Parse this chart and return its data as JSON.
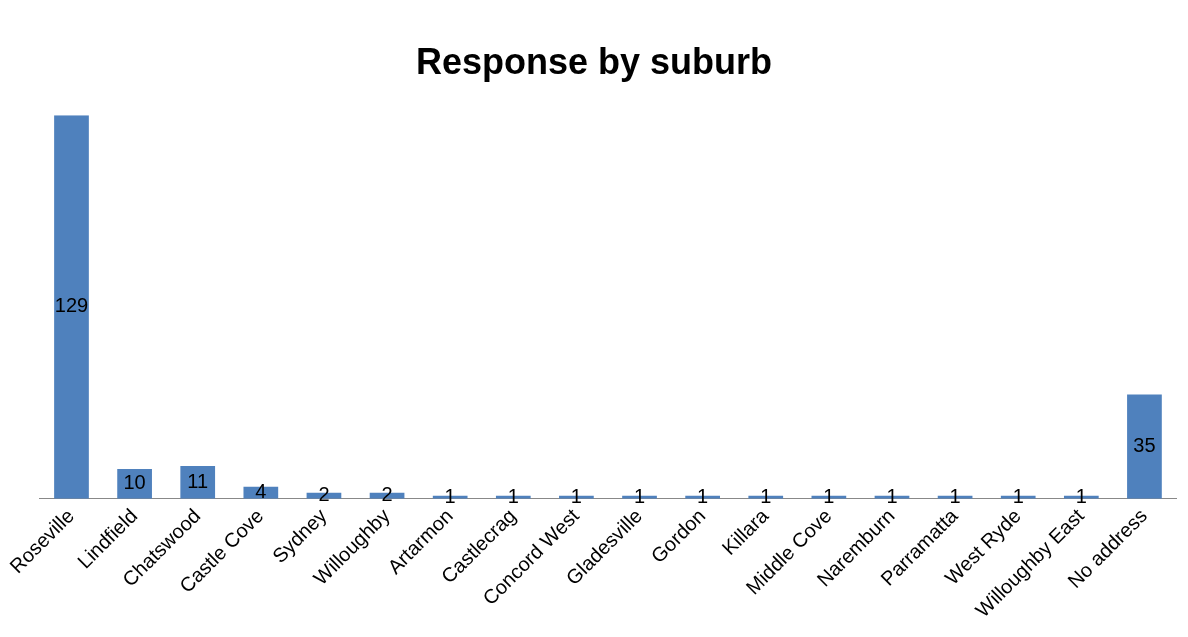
{
  "chart_data": {
    "type": "bar",
    "title": "Response by suburb",
    "categories": [
      "Roseville",
      "Lindfield",
      "Chatswood",
      "Castle Cove",
      "Sydney",
      "Willoughby",
      "Artarmon",
      "Castlecrag",
      "Concord West",
      "Gladesville",
      "Gordon",
      "Killara",
      "Middle Cove",
      "Naremburn",
      "Parramatta",
      "West Ryde",
      "Willoughby East",
      "No address"
    ],
    "values": [
      129,
      10,
      11,
      4,
      2,
      2,
      1,
      1,
      1,
      1,
      1,
      1,
      1,
      1,
      1,
      1,
      1,
      35
    ],
    "color": "#4f81bd",
    "data_labels": true,
    "legend": false,
    "grid": false
  }
}
